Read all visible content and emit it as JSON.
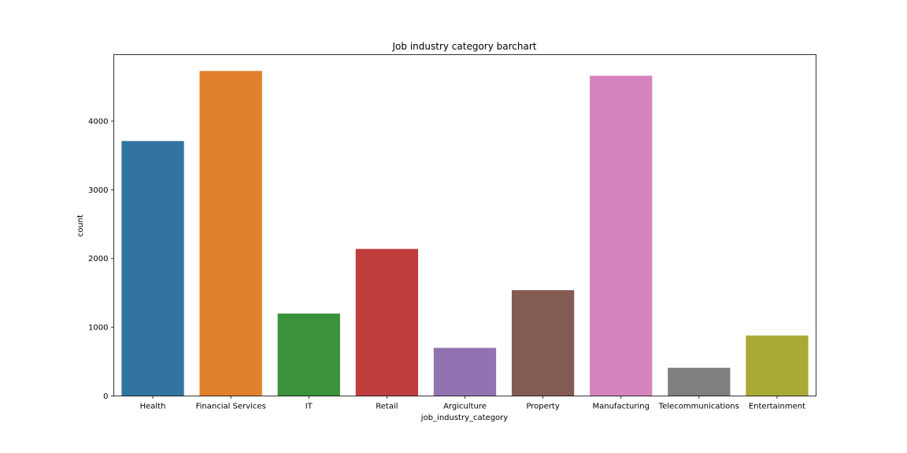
{
  "chart_data": {
    "type": "bar",
    "title": "Job industry category barchart",
    "xlabel": "job_industry_category",
    "ylabel": "count",
    "categories": [
      "Health",
      "Financial Services",
      "IT",
      "Retail",
      "Argiculture",
      "Property",
      "Manufacturing",
      "Telecommunications",
      "Entertainment"
    ],
    "values": [
      3710,
      4730,
      1200,
      2140,
      700,
      1540,
      4660,
      410,
      880
    ],
    "colors": [
      "#3274a1",
      "#e1812c",
      "#3a923a",
      "#c03d3e",
      "#9372b2",
      "#845b53",
      "#d684bd",
      "#7f7f7f",
      "#a9aa35"
    ],
    "ylim": [
      0,
      4967
    ],
    "yticks": [
      0,
      1000,
      2000,
      3000,
      4000
    ],
    "grid": false,
    "legend": false
  }
}
